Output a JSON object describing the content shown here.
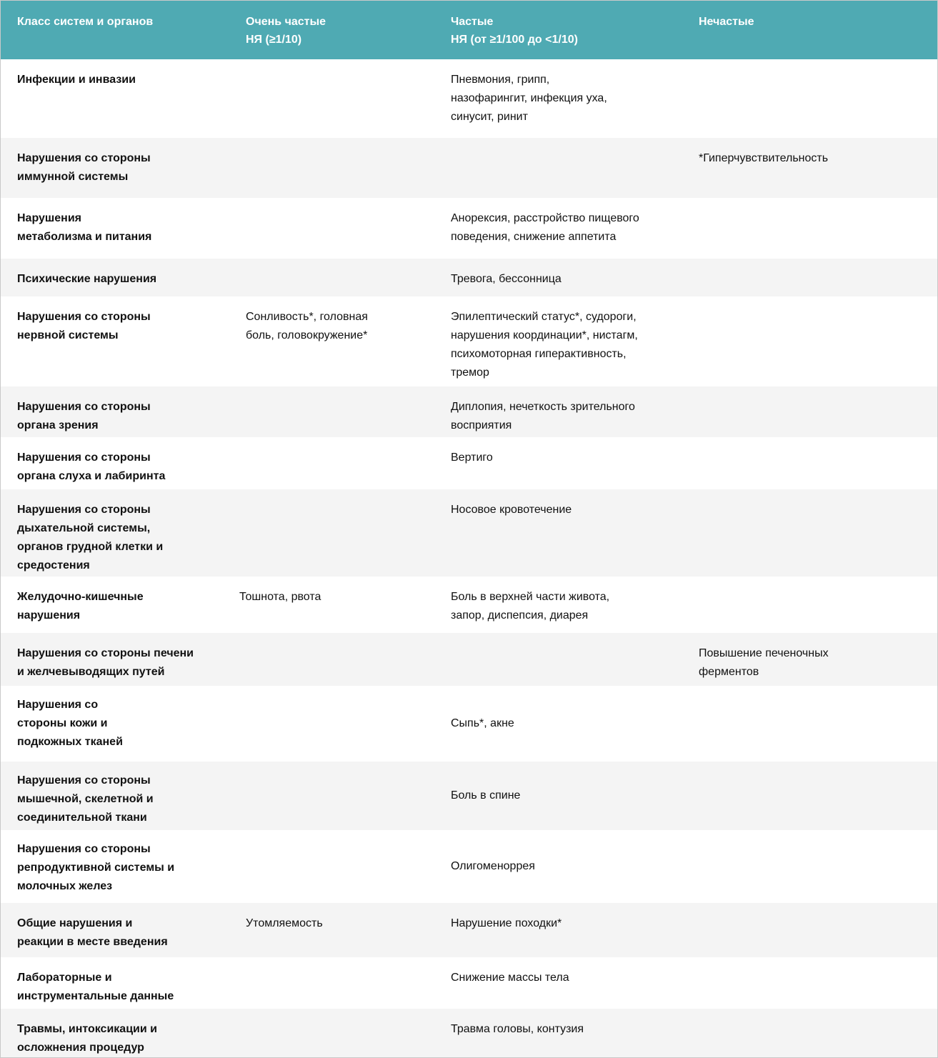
{
  "header": [
    "Класс систем и органов",
    "Очень частые\nНЯ (≥1/10)",
    "Частые\nНЯ (от ≥1/100 до <1/10)",
    "Нечастые"
  ],
  "colors": {
    "header_bg": "#4faab3",
    "row_alt": "#f4f4f4"
  },
  "rows": [
    {
      "system": "Инфекции и инвазии",
      "very_common": "",
      "common": "Пневмония, грипп,\nназофарингит, инфекция уха,\nсинусит, ринит",
      "uncommon": ""
    },
    {
      "system": "Нарушения со стороны\nиммунной системы",
      "very_common": "",
      "common": "",
      "uncommon": "*Гиперчувствительность"
    },
    {
      "system": "Нарушения\nметаболизма и питания",
      "very_common": "",
      "common": "Анорексия, расстройство пищевого\nповедения, снижение аппетита",
      "uncommon": ""
    },
    {
      "system": "Психические нарушения",
      "very_common": "",
      "common": "Тревога, бессонница",
      "uncommon": ""
    },
    {
      "system": "Нарушения со стороны\nнервной системы",
      "very_common": "Сонливость*, головная\nболь, головокружение*",
      "common": "Эпилептический статус*, судороги,\nнарушения координации*, нистагм,\nпсихомоторная гиперактивность,\nтремор",
      "uncommon": ""
    },
    {
      "system": "Нарушения со стороны\nоргана зрения",
      "very_common": "",
      "common": "Диплопия, нечеткость зрительного\nвосприятия",
      "uncommon": ""
    },
    {
      "system": "Нарушения со стороны\nоргана слуха и лабиринта",
      "very_common": "",
      "common": "Вертиго",
      "uncommon": ""
    },
    {
      "system": "Нарушения со стороны\nдыхательной системы,\nорганов грудной клетки и\nсредостения",
      "very_common": "",
      "common": "Носовое кровотечение",
      "uncommon": ""
    },
    {
      "system": "Желудочно-кишечные\nнарушения",
      "very_common": "Тошнота, рвота",
      "common": "Боль в верхней части живота,\nзапор, диспепсия, диарея",
      "uncommon": ""
    },
    {
      "system": "Нарушения со стороны печени\nи желчевыводящих путей",
      "very_common": "",
      "common": "",
      "uncommon": "Повышение печеночных\nферментов"
    },
    {
      "system": "Нарушения со\nстороны кожи и\nподкожных тканей",
      "very_common": "",
      "common": "Сыпь*, акне",
      "uncommon": ""
    },
    {
      "system": "Нарушения со стороны\nмышечной, скелетной и\nсоединительной ткани",
      "very_common": "",
      "common": "Боль в спине",
      "uncommon": ""
    },
    {
      "system": "Нарушения со стороны\nрепродуктивной системы и\nмолочных желез",
      "very_common": "",
      "common": "Олигоменоррея",
      "uncommon": ""
    },
    {
      "system": "Общие нарушения и\nреакции в месте введения",
      "very_common": "Утомляемость",
      "common": "Нарушение походки*",
      "uncommon": ""
    },
    {
      "system": "Лабораторные и\nинструментальные данные",
      "very_common": "",
      "common": "Снижение массы тела",
      "uncommon": ""
    },
    {
      "system": "Травмы, интоксикации и\nосложнения процедур",
      "very_common": "",
      "common": "Травма головы, контузия",
      "uncommon": ""
    }
  ]
}
